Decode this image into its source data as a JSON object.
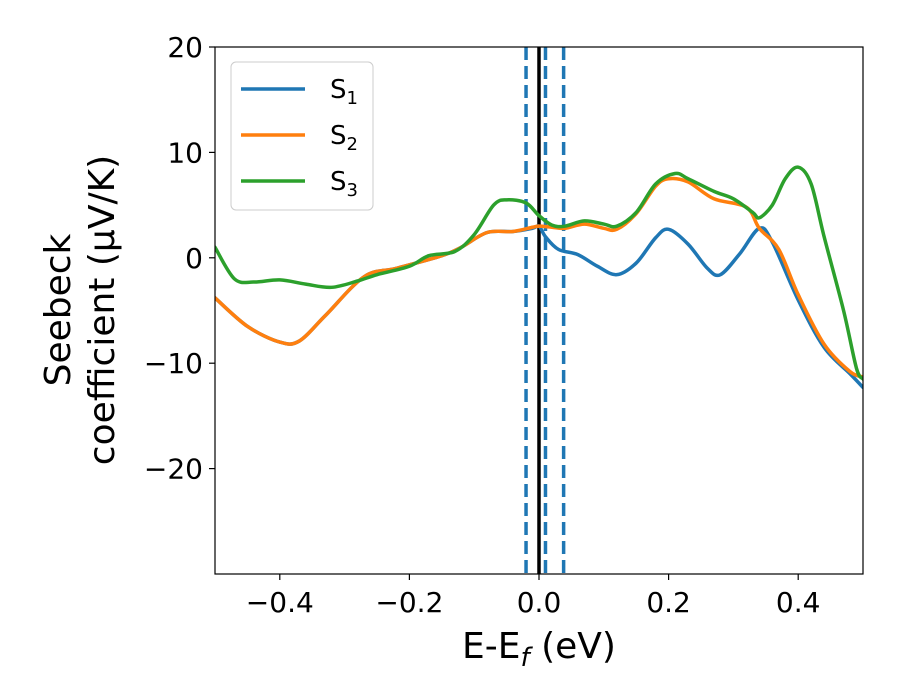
{
  "chart_data": {
    "type": "line",
    "xlabel": "E-E",
    "xlabel_sub": "f",
    "xlabel_unit": " (eV)",
    "ylabel_line1": "Seebeck",
    "ylabel_line2": "coefficient  (μV/K)",
    "xlim": [
      -0.5,
      0.5
    ],
    "ylim": [
      -30,
      20
    ],
    "xticks": [
      -0.4,
      -0.2,
      0.0,
      0.2,
      0.4
    ],
    "xtick_labels": [
      "−0.4",
      "−0.2",
      "0.0",
      "0.2",
      "0.4"
    ],
    "yticks": [
      -20,
      -10,
      0,
      10,
      20
    ],
    "ytick_labels": [
      "−20",
      "−10",
      "0",
      "10",
      "20"
    ],
    "grid": false,
    "legend_position": "top-left",
    "vertical_lines": [
      {
        "x": 0.0,
        "color": "#000000",
        "style": "solid"
      },
      {
        "x": -0.02,
        "color": "#1f77b4",
        "style": "dashed"
      },
      {
        "x": 0.01,
        "color": "#1f77b4",
        "style": "dashed"
      },
      {
        "x": 0.038,
        "color": "#1f77b4",
        "style": "dashed"
      }
    ],
    "series": [
      {
        "name": "S",
        "sub": "1",
        "color": "#1f77b4",
        "points": [
          [
            -0.5,
            -3.8
          ],
          [
            -0.45,
            -6.5
          ],
          [
            -0.4,
            -8.0
          ],
          [
            -0.37,
            -7.9
          ],
          [
            -0.33,
            -5.5
          ],
          [
            -0.27,
            -1.8
          ],
          [
            -0.22,
            -1.0
          ],
          [
            -0.15,
            0.2
          ],
          [
            -0.12,
            1.0
          ],
          [
            -0.08,
            2.4
          ],
          [
            -0.04,
            2.5
          ],
          [
            -0.01,
            2.8
          ],
          [
            0.0,
            3.0
          ],
          [
            0.01,
            2.0
          ],
          [
            0.03,
            0.8
          ],
          [
            0.06,
            0.3
          ],
          [
            0.09,
            -0.8
          ],
          [
            0.12,
            -1.6
          ],
          [
            0.15,
            -0.5
          ],
          [
            0.18,
            1.9
          ],
          [
            0.2,
            2.7
          ],
          [
            0.23,
            1.3
          ],
          [
            0.26,
            -1.0
          ],
          [
            0.28,
            -1.6
          ],
          [
            0.31,
            0.4
          ],
          [
            0.34,
            2.8
          ],
          [
            0.36,
            1.5
          ],
          [
            0.4,
            -4.0
          ],
          [
            0.44,
            -8.5
          ],
          [
            0.48,
            -11.0
          ],
          [
            0.5,
            -12.3
          ]
        ]
      },
      {
        "name": "S",
        "sub": "2",
        "color": "#ff7f0e",
        "points": [
          [
            -0.5,
            -3.8
          ],
          [
            -0.45,
            -6.5
          ],
          [
            -0.4,
            -8.0
          ],
          [
            -0.37,
            -7.9
          ],
          [
            -0.33,
            -5.5
          ],
          [
            -0.27,
            -1.8
          ],
          [
            -0.22,
            -1.0
          ],
          [
            -0.15,
            0.2
          ],
          [
            -0.12,
            1.0
          ],
          [
            -0.08,
            2.4
          ],
          [
            -0.04,
            2.5
          ],
          [
            -0.01,
            2.9
          ],
          [
            0.0,
            3.0
          ],
          [
            0.02,
            2.9
          ],
          [
            0.04,
            2.8
          ],
          [
            0.07,
            3.2
          ],
          [
            0.1,
            2.8
          ],
          [
            0.12,
            2.7
          ],
          [
            0.15,
            4.2
          ],
          [
            0.18,
            6.8
          ],
          [
            0.2,
            7.5
          ],
          [
            0.23,
            7.2
          ],
          [
            0.27,
            5.6
          ],
          [
            0.32,
            4.8
          ],
          [
            0.34,
            2.8
          ],
          [
            0.37,
            0.8
          ],
          [
            0.4,
            -3.5
          ],
          [
            0.44,
            -8.2
          ],
          [
            0.48,
            -10.8
          ],
          [
            0.5,
            -11.3
          ]
        ]
      },
      {
        "name": "S",
        "sub": "3",
        "color": "#2ca02c",
        "points": [
          [
            -0.5,
            1.0
          ],
          [
            -0.47,
            -2.0
          ],
          [
            -0.44,
            -2.3
          ],
          [
            -0.4,
            -2.1
          ],
          [
            -0.36,
            -2.5
          ],
          [
            -0.32,
            -2.8
          ],
          [
            -0.28,
            -2.2
          ],
          [
            -0.25,
            -1.6
          ],
          [
            -0.2,
            -0.8
          ],
          [
            -0.17,
            0.2
          ],
          [
            -0.13,
            0.6
          ],
          [
            -0.1,
            2.2
          ],
          [
            -0.07,
            5.0
          ],
          [
            -0.05,
            5.5
          ],
          [
            -0.02,
            5.2
          ],
          [
            0.0,
            4.0
          ],
          [
            0.02,
            3.1
          ],
          [
            0.04,
            3.0
          ],
          [
            0.07,
            3.5
          ],
          [
            0.1,
            3.2
          ],
          [
            0.12,
            3.0
          ],
          [
            0.15,
            4.3
          ],
          [
            0.18,
            7.0
          ],
          [
            0.21,
            8.0
          ],
          [
            0.23,
            7.5
          ],
          [
            0.27,
            6.3
          ],
          [
            0.3,
            5.6
          ],
          [
            0.33,
            4.3
          ],
          [
            0.34,
            3.8
          ],
          [
            0.36,
            5.0
          ],
          [
            0.38,
            7.5
          ],
          [
            0.4,
            8.6
          ],
          [
            0.42,
            7.0
          ],
          [
            0.44,
            2.0
          ],
          [
            0.47,
            -5.0
          ],
          [
            0.49,
            -10.5
          ],
          [
            0.5,
            -11.5
          ]
        ]
      }
    ]
  }
}
